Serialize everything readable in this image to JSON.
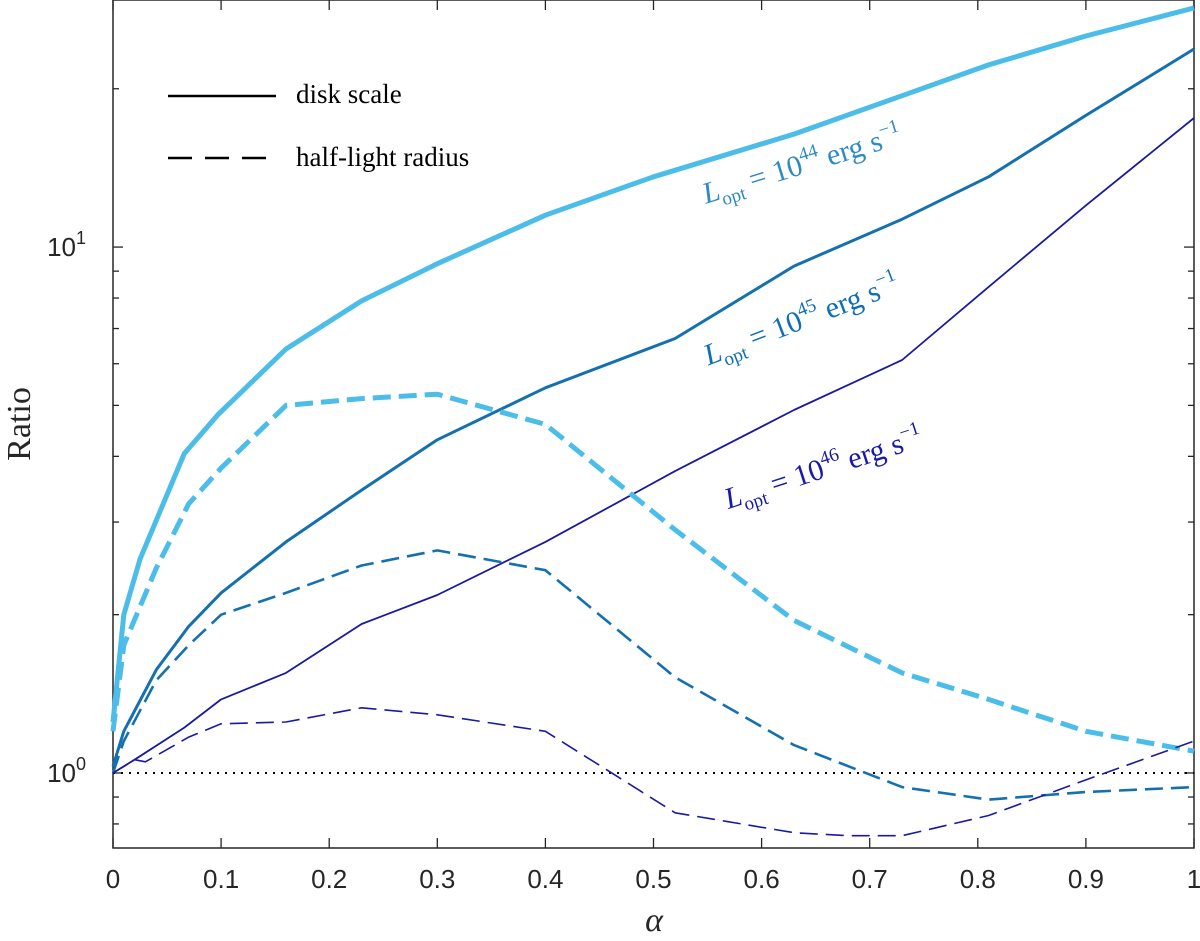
{
  "chart_data": {
    "type": "line",
    "xlabel": "α",
    "ylabel": "Ratio",
    "xlim": [
      0,
      1
    ],
    "ylim": [
      0.72,
      29.5
    ],
    "yscale": "log",
    "grid": false,
    "legend_position": "top-left",
    "x_ticks": [
      "0",
      "0.1",
      "0.2",
      "0.3",
      "0.4",
      "0.5",
      "0.6",
      "0.7",
      "0.8",
      "0.9",
      "1"
    ],
    "y_ticks": [
      {
        "base": "10",
        "exp": "0",
        "value": 1
      },
      {
        "base": "10",
        "exp": "1",
        "value": 10
      }
    ],
    "legend": [
      {
        "label": "disk scale",
        "style": "solid"
      },
      {
        "label": "half-light radius",
        "style": "dashed"
      }
    ],
    "reference_line": {
      "y": 1,
      "style": "dotted",
      "color": "#000000"
    },
    "series_labels": [
      {
        "base": "L",
        "sub": "opt",
        "eq": " = 10",
        "exp": "44",
        "unit": " erg s",
        "unit_exp": "−1",
        "color": "#2d8ac4",
        "x": 0.64,
        "y": 13.8,
        "angle": -17
      },
      {
        "base": "L",
        "sub": "opt",
        "eq": " = 10",
        "exp": "45",
        "unit": " erg s",
        "unit_exp": "−1",
        "color": "#0f6fb5",
        "x": 0.64,
        "y": 7.0,
        "angle": -21
      },
      {
        "base": "L",
        "sub": "opt",
        "eq": " = 10",
        "exp": "46",
        "unit": " erg s",
        "unit_exp": "−1",
        "color": "#1a1aa8",
        "x": 0.66,
        "y": 3.65,
        "angle": -18
      }
    ],
    "series": [
      {
        "luminosity_exp": "44",
        "type": "disk scale",
        "color": "#4bbde8",
        "width": 5,
        "dash": "",
        "x": [
          0,
          0.01,
          0.025,
          0.066,
          0.097,
          0.16,
          0.23,
          0.3,
          0.4,
          0.5,
          0.63,
          0.73,
          0.81,
          0.9,
          1.0
        ],
        "y": [
          1.25,
          2.0,
          2.55,
          4.05,
          4.8,
          6.4,
          7.9,
          9.3,
          11.5,
          13.6,
          16.4,
          19.4,
          22.2,
          25.2,
          28.5
        ]
      },
      {
        "luminosity_exp": "45",
        "type": "disk scale",
        "color": "#1570b0",
        "width": 3,
        "dash": "",
        "x": [
          0,
          0.01,
          0.04,
          0.07,
          0.1,
          0.16,
          0.23,
          0.3,
          0.4,
          0.52,
          0.63,
          0.73,
          0.81,
          0.9,
          1.0
        ],
        "y": [
          1.03,
          1.2,
          1.57,
          1.9,
          2.2,
          2.75,
          3.45,
          4.3,
          5.4,
          6.7,
          9.2,
          11.3,
          13.6,
          17.8,
          23.8
        ]
      },
      {
        "luminosity_exp": "46",
        "type": "disk scale",
        "color": "#1a1aa0",
        "width": 1.8,
        "dash": "",
        "x": [
          0,
          0.02,
          0.066,
          0.1,
          0.16,
          0.23,
          0.3,
          0.4,
          0.52,
          0.63,
          0.73,
          0.81,
          0.9,
          1.0
        ],
        "y": [
          1.0,
          1.06,
          1.22,
          1.38,
          1.55,
          1.92,
          2.18,
          2.75,
          3.75,
          4.9,
          6.1,
          8.4,
          12.0,
          17.6
        ]
      },
      {
        "luminosity_exp": "44",
        "type": "half-light radius",
        "color": "#4bbde8",
        "width": 5,
        "dash": "18 8",
        "x": [
          0,
          0.01,
          0.04,
          0.07,
          0.1,
          0.16,
          0.23,
          0.3,
          0.4,
          0.52,
          0.63,
          0.73,
          0.81,
          0.9,
          1.0
        ],
        "y": [
          1.2,
          1.75,
          2.45,
          3.25,
          3.8,
          5.0,
          5.15,
          5.25,
          4.6,
          2.9,
          1.95,
          1.55,
          1.38,
          1.2,
          1.1
        ]
      },
      {
        "luminosity_exp": "45",
        "type": "half-light radius",
        "color": "#1570b0",
        "width": 2.6,
        "dash": "18 8",
        "x": [
          0,
          0.01,
          0.04,
          0.07,
          0.1,
          0.16,
          0.23,
          0.3,
          0.4,
          0.52,
          0.63,
          0.73,
          0.81,
          0.9,
          1.0
        ],
        "y": [
          1.0,
          1.15,
          1.5,
          1.75,
          2.0,
          2.2,
          2.48,
          2.65,
          2.43,
          1.52,
          1.13,
          0.94,
          0.89,
          0.92,
          0.94
        ]
      },
      {
        "luminosity_exp": "46",
        "type": "half-light radius",
        "color": "#1a1aa0",
        "width": 1.6,
        "dash": "18 8",
        "x": [
          0,
          0.02,
          0.03,
          0.07,
          0.1,
          0.16,
          0.23,
          0.3,
          0.4,
          0.52,
          0.63,
          0.68,
          0.73,
          0.81,
          0.9,
          1.0
        ],
        "y": [
          1.0,
          1.06,
          1.05,
          1.17,
          1.24,
          1.25,
          1.33,
          1.29,
          1.2,
          0.84,
          0.77,
          0.76,
          0.76,
          0.83,
          0.97,
          1.15
        ]
      }
    ]
  }
}
